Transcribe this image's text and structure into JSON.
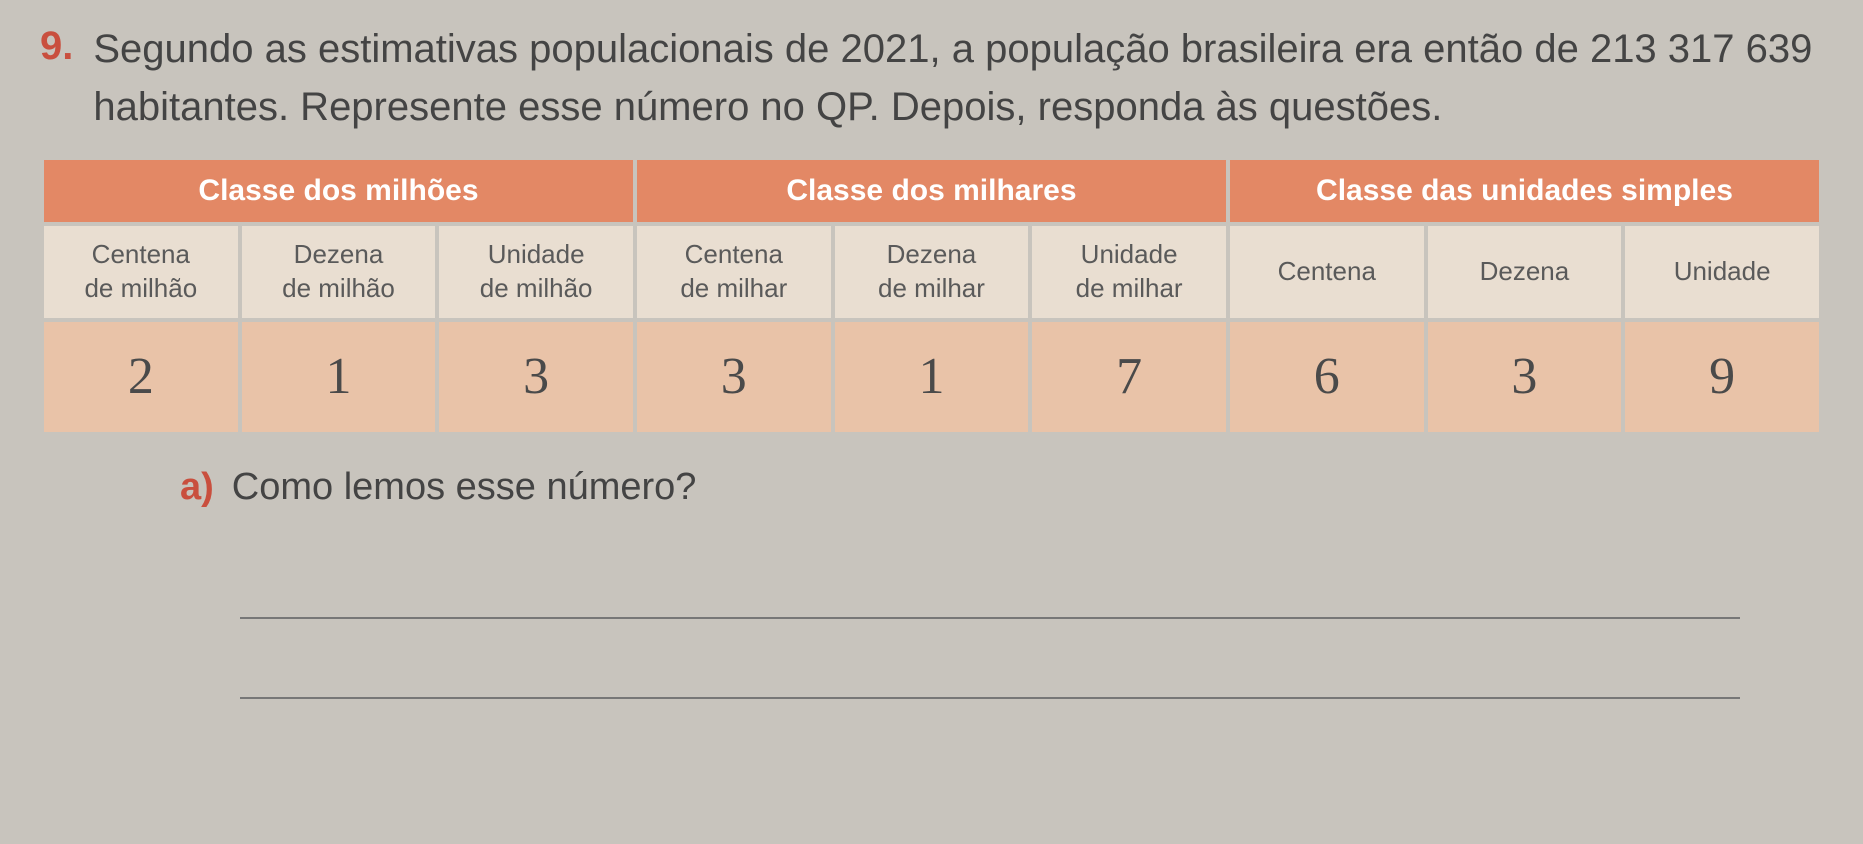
{
  "question": {
    "number": "9.",
    "text": "Segundo as estimativas populacionais de 2021, a população brasileira era então de 213 317 639 habitantes. Represente esse número no QP. Depois, responda às questões."
  },
  "table": {
    "class_headers": [
      "Classe dos milhões",
      "Classe dos milhares",
      "Classe das unidades simples"
    ],
    "col_headers": [
      {
        "line1": "Centena",
        "line2": "de milhão"
      },
      {
        "line1": "Dezena",
        "line2": "de milhão"
      },
      {
        "line1": "Unidade",
        "line2": "de milhão"
      },
      {
        "line1": "Centena",
        "line2": "de milhar"
      },
      {
        "line1": "Dezena",
        "line2": "de milhar"
      },
      {
        "line1": "Unidade",
        "line2": "de milhar"
      },
      {
        "line1": "Centena",
        "line2": ""
      },
      {
        "line1": "Dezena",
        "line2": ""
      },
      {
        "line1": "Unidade",
        "line2": ""
      }
    ],
    "values": [
      "2",
      "1",
      "3",
      "3",
      "1",
      "7",
      "6",
      "3",
      "9"
    ],
    "colors": {
      "class_header_bg": "#e38865",
      "class_header_fg": "#ffffff",
      "col_header_bg": "#e9ded1",
      "value_bg": "#e9c3a8",
      "page_bg": "#c8c4bd",
      "accent": "#c94f3e"
    }
  },
  "subquestion": {
    "label": "a)",
    "text": "Como lemos esse número?"
  }
}
